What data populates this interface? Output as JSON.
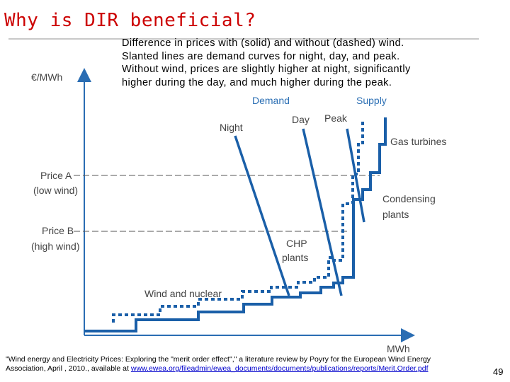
{
  "title": "Why is DIR beneficial?",
  "caption": [
    "Difference in prices with (solid) and without (dashed) wind.",
    "Slanted lines are demand curves for night, day, and peak.",
    "Without wind, prices are slightly higher at night, significantly",
    "higher during the day, and much higher during the peak."
  ],
  "diagram": {
    "y_axis_label": "€/MWh",
    "x_axis_label": "MWh",
    "demand_label": "Demand",
    "supply_label": "Supply",
    "price_a": [
      "Price A",
      "(low wind)"
    ],
    "price_b": [
      "Price B",
      "(high wind)"
    ],
    "demand_curves": [
      "Night",
      "Day",
      "Peak"
    ],
    "segments": {
      "gas_turbines": "Gas turbines",
      "condensing": [
        "Condensing",
        "plants"
      ],
      "chp": [
        "CHP",
        "plants"
      ],
      "wind_nuclear": "Wind and nuclear"
    },
    "colors": {
      "curve": "#1a5fa8",
      "label_blue": "#2b6fb4",
      "axis": "#2a6db3",
      "title": "#cc0000"
    }
  },
  "footnote": {
    "line1": "\"Wind energy and Electricity Prices: Exploring the \"merit order effect\",\" a literature review by Poyry for the European Wind Energy",
    "line2_prefix": "Association, April , 2010., available at ",
    "link": "www.ewea.org/fileadmin/ewea_documents/documents/publications/reports/Merit.Order.pdf"
  },
  "page_number": "49"
}
